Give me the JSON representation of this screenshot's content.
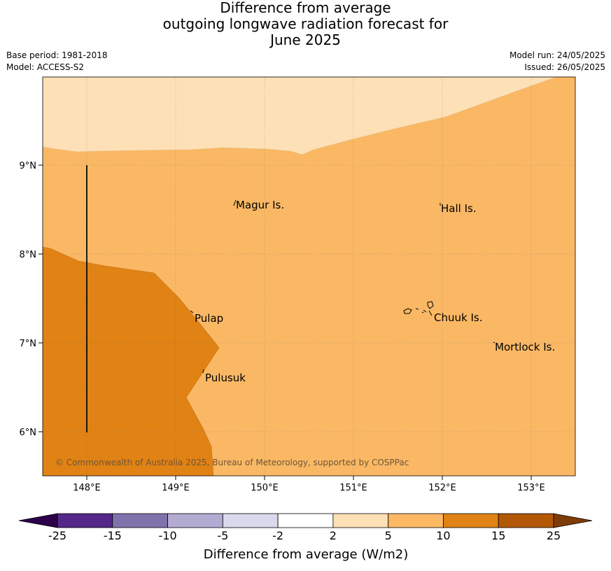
{
  "title": {
    "line1": "Difference from average",
    "line2": "outgoing longwave radiation forecast for",
    "line3": "June 2025"
  },
  "meta": {
    "base_period": "Base period: 1981-2018",
    "model": "Model: ACCESS-S2",
    "model_run": "Model run: 24/05/2025",
    "issued": "Issued: 26/05/2025"
  },
  "map": {
    "lon_ticks": [
      "148°E",
      "149°E",
      "150°E",
      "151°E",
      "152°E",
      "153°E"
    ],
    "lat_ticks": [
      "9°N",
      "8°N",
      "7°N",
      "6°N"
    ],
    "places": [
      "Magur Is.",
      "Hall Is.",
      "Pulap",
      "Chuuk Is.",
      "Mortlock Is.",
      "Pulusuk"
    ],
    "copyright": "© Commonwealth of Australia 2025, Bureau of Meteorology, supported by COSPPac",
    "fill_colors": {
      "2_to_5": "#fde0b6",
      "5_to_10": "#fab865",
      "10_to_15": "#e08214"
    }
  },
  "colorbar": {
    "tick_labels": [
      "-25",
      "-15",
      "-10",
      "-5",
      "-2",
      "2",
      "5",
      "10",
      "15",
      "25"
    ],
    "colors": [
      "#2d004b",
      "#542788",
      "#8073ac",
      "#b2abd2",
      "#d8daeb",
      "#ffffff",
      "#fee0b6",
      "#fdb863",
      "#e08214",
      "#b35806",
      "#7f3b08"
    ],
    "label": "Difference from average (W/m2)"
  }
}
